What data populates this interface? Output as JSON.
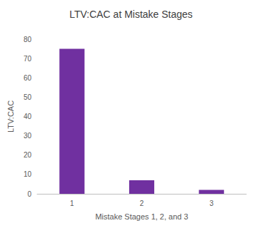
{
  "chart_data": {
    "type": "bar",
    "title": "LTV:CAC at Mistake Stages",
    "x_label": "Mistake Stages 1, 2, and 3",
    "y_label": "LTV:CAC",
    "categories": [
      "1",
      "2",
      "3"
    ],
    "values": [
      75,
      7,
      2
    ],
    "color": "#7030a0",
    "ylim": [
      0,
      80
    ],
    "yticks": [
      0,
      10,
      20,
      30,
      40,
      50,
      60,
      70,
      80
    ],
    "grid": false
  }
}
